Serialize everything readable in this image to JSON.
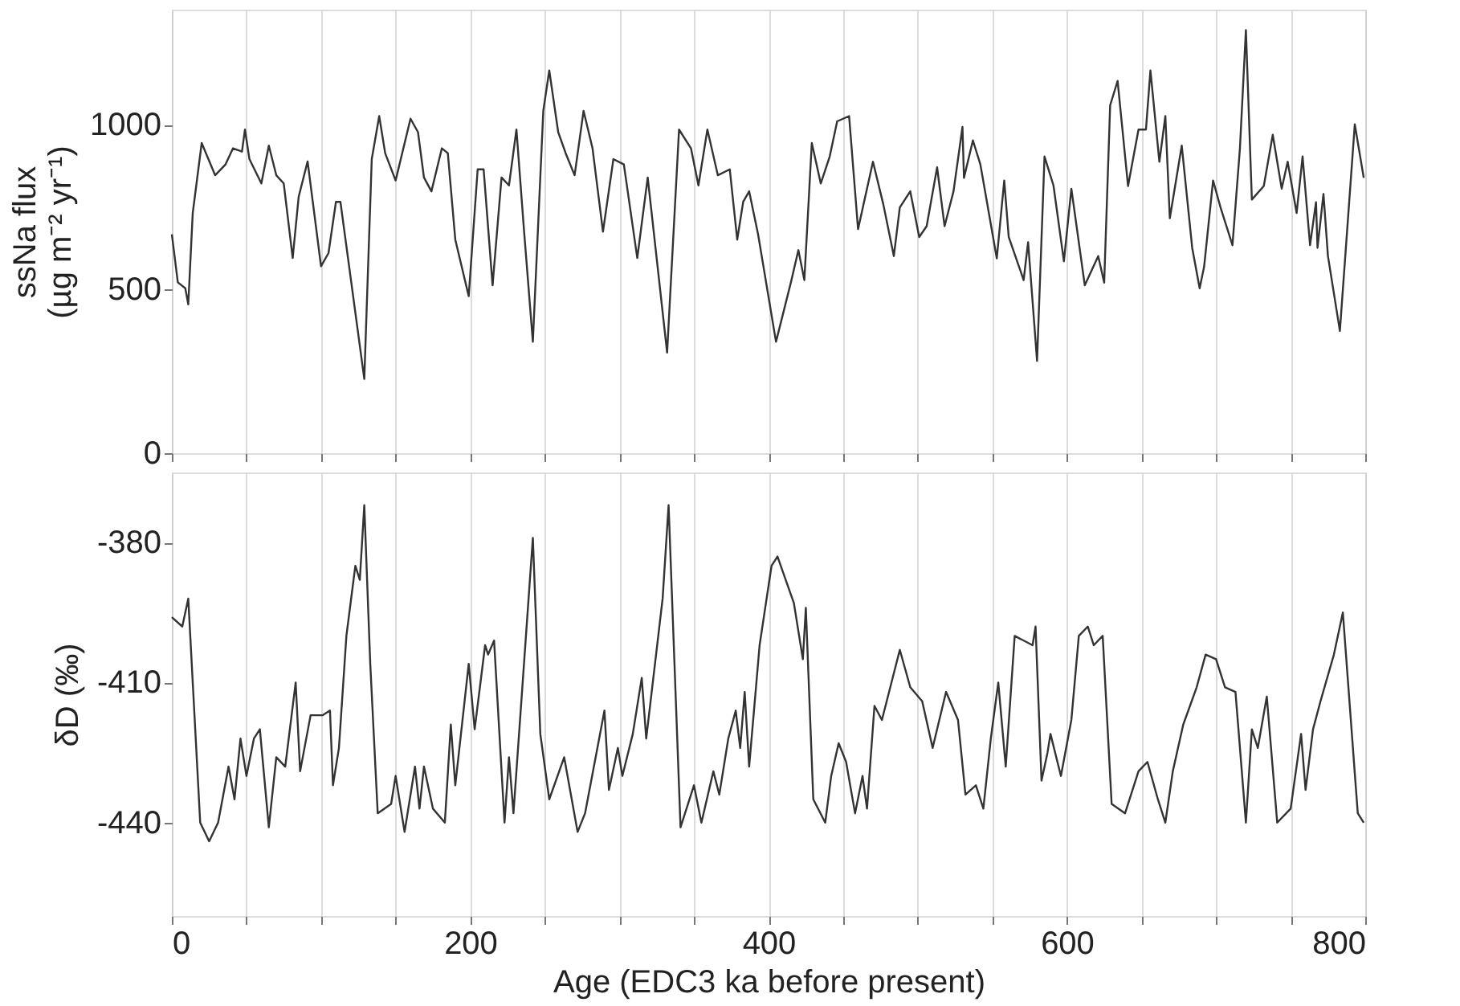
{
  "chart_data": [
    {
      "type": "line",
      "ylabel": "ssNa flux\n(µg m⁻² yr⁻¹)",
      "xlim": [
        0,
        800
      ],
      "ylim": [
        0,
        1350
      ],
      "yticks": [
        0,
        500,
        1000
      ],
      "xticks": [
        {
          "value": 0,
          "label": null
        },
        {
          "value": 50,
          "label": null
        },
        {
          "value": 100,
          "label": null
        },
        {
          "value": 150,
          "label": null
        },
        {
          "value": 200,
          "label": null
        },
        {
          "value": 250,
          "label": null
        },
        {
          "value": 300,
          "label": null
        },
        {
          "value": 350,
          "label": null
        },
        {
          "value": 400,
          "label": null
        },
        {
          "value": 450,
          "label": null
        },
        {
          "value": 500,
          "label": null
        },
        {
          "value": 550,
          "label": null
        },
        {
          "value": 600,
          "label": null
        },
        {
          "value": 650,
          "label": null
        },
        {
          "value": 700,
          "label": null
        },
        {
          "value": 750,
          "label": null
        },
        {
          "value": 800,
          "label": null
        }
      ],
      "grid": "x",
      "tick_labels": "y",
      "series": [
        {
          "color": "#333333",
          "x": [
            0,
            4,
            9,
            11,
            14,
            20,
            29,
            36,
            41,
            47,
            49,
            52,
            60,
            65,
            70,
            75,
            81,
            85,
            91,
            100,
            105,
            110,
            113,
            129,
            134,
            139,
            143,
            150,
            160,
            165,
            169,
            174,
            181,
            185,
            190,
            199,
            205,
            209,
            215,
            221,
            226,
            231,
            236,
            242,
            249,
            253,
            259,
            264,
            270,
            276,
            282,
            289,
            296,
            303,
            312,
            319,
            332,
            340,
            348,
            353,
            359,
            366,
            374,
            379,
            383,
            387,
            393,
            405,
            415,
            420,
            424,
            429,
            435,
            441,
            446,
            454,
            460,
            470,
            477,
            484,
            488,
            495,
            501,
            506,
            513,
            518,
            524,
            530,
            531,
            537,
            542,
            553,
            558,
            561,
            571,
            574,
            580,
            585,
            591,
            598,
            603,
            612,
            621,
            625,
            629,
            634,
            641,
            648,
            653,
            656,
            662,
            666,
            669,
            677,
            684,
            689,
            692,
            698,
            703,
            711,
            716,
            720,
            724,
            732,
            738,
            744,
            748,
            754,
            758,
            763,
            767,
            768,
            772,
            775,
            783,
            793,
            799
          ],
          "values": [
            666,
            520,
            502,
            453,
            731,
            944,
            846,
            879,
            928,
            918,
            985,
            895,
            821,
            936,
            846,
            821,
            594,
            780,
            888,
            569,
            609,
            765,
            765,
            226,
            895,
            1026,
            913,
            830,
            1018,
            977,
            839,
            797,
            928,
            913,
            650,
            478,
            864,
            864,
            511,
            839,
            815,
            985,
            682,
            339,
            1042,
            1165,
            977,
            913,
            846,
            1042,
            928,
            674,
            895,
            879,
            594,
            839,
            306,
            985,
            928,
            815,
            985,
            846,
            864,
            650,
            765,
            797,
            666,
            339,
            520,
            618,
            527,
            944,
            821,
            903,
            1010,
            1026,
            682,
            887,
            756,
            600,
            748,
            797,
            658,
            691,
            870,
            691,
            797,
            993,
            838,
            952,
            879,
            593,
            830,
            658,
            527,
            642,
            281,
            903,
            815,
            584,
            805,
            511,
            600,
            519,
            1059,
            1133,
            813,
            985,
            985,
            1165,
            887,
            1026,
            715,
            936,
            625,
            502,
            568,
            830,
            748,
            633,
            928,
            1288,
            772,
            813,
            969,
            805,
            887,
            731,
            903,
            633,
            764,
            625,
            789,
            600,
            372,
            1001,
            838
          ]
        }
      ]
    },
    {
      "type": "line",
      "ylabel": "δD (‰)",
      "xlabel": "Age (EDC3 ka before present)",
      "xlim": [
        0,
        800
      ],
      "ylim": [
        -460,
        -365
      ],
      "yticks": [
        -380,
        -410,
        -440
      ],
      "xticks": [
        0,
        {
          "value": 50,
          "label": null
        },
        {
          "value": 100,
          "label": null
        },
        {
          "value": 150,
          "label": null
        },
        200,
        {
          "value": 250,
          "label": null
        },
        {
          "value": 300,
          "label": null
        },
        {
          "value": 350,
          "label": null
        },
        400,
        {
          "value": 450,
          "label": null
        },
        {
          "value": 500,
          "label": null
        },
        {
          "value": 550,
          "label": null
        },
        600,
        {
          "value": 650,
          "label": null
        },
        {
          "value": 700,
          "label": null
        },
        {
          "value": 750,
          "label": null
        },
        800
      ],
      "grid": "x",
      "series": [
        {
          "color": "#333333",
          "x": [
            0,
            7,
            11,
            14,
            19,
            25,
            31,
            38,
            42,
            46,
            50,
            55,
            59,
            65,
            70,
            76,
            83,
            86,
            93,
            101,
            106,
            108,
            112,
            117,
            123,
            126,
            129,
            133,
            138,
            147,
            150,
            156,
            163,
            166,
            169,
            175,
            183,
            187,
            190,
            199,
            203,
            210,
            212,
            216,
            223,
            226,
            229,
            242,
            247,
            253,
            263,
            272,
            277,
            290,
            293,
            299,
            302,
            309,
            315,
            318,
            329,
            333,
            341,
            350,
            355,
            363,
            367,
            373,
            378,
            381,
            384,
            387,
            394,
            402,
            406,
            417,
            423,
            425,
            430,
            438,
            442,
            447,
            452,
            458,
            463,
            466,
            471,
            476,
            488,
            495,
            503,
            510,
            519,
            527,
            532,
            539,
            544,
            549,
            554,
            559,
            565,
            577,
            579,
            583,
            587,
            589,
            596,
            603,
            608,
            614,
            618,
            624,
            630,
            639,
            648,
            654,
            661,
            666,
            671,
            678,
            687,
            693,
            700,
            706,
            713,
            720,
            724,
            728,
            734,
            741,
            750,
            757,
            760,
            765,
            770,
            779,
            785,
            795,
            799
          ],
          "values": [
            -396,
            -398,
            -392,
            -410,
            -440,
            -444,
            -440,
            -428,
            -435,
            -422,
            -430,
            -422,
            -420,
            -441,
            -426,
            -428,
            -410,
            -429,
            -417,
            -417,
            -416,
            -432,
            -424,
            -400,
            -385,
            -388,
            -372,
            -406,
            -438,
            -436,
            -430,
            -442,
            -428,
            -437,
            -428,
            -437,
            -440,
            -419,
            -432,
            -406,
            -420,
            -402,
            -404,
            -401,
            -440,
            -426,
            -438,
            -379,
            -421,
            -435,
            -426,
            -442,
            -438,
            -416,
            -433,
            -424,
            -430,
            -421,
            -409,
            -422,
            -392,
            -372,
            -441,
            -432,
            -440,
            -429,
            -434,
            -422,
            -416,
            -424,
            -412,
            -428,
            -402,
            -385,
            -383,
            -393,
            -405,
            -394,
            -435,
            -440,
            -430,
            -423,
            -427,
            -438,
            -430,
            -437,
            -415,
            -418,
            -403,
            -411,
            -414,
            -424,
            -412,
            -418,
            -434,
            -432,
            -437,
            -422,
            -410,
            -428,
            -400,
            -402,
            -398,
            -431,
            -425,
            -421,
            -430,
            -418,
            -400,
            -398,
            -402,
            -400,
            -436,
            -438,
            -429,
            -427,
            -435,
            -440,
            -429,
            -419,
            -411,
            -404,
            -405,
            -411,
            -412,
            -440,
            -420,
            -424,
            -413,
            -440,
            -437,
            -421,
            -433,
            -420,
            -414,
            -404,
            -395,
            -438,
            -440
          ]
        }
      ]
    }
  ]
}
